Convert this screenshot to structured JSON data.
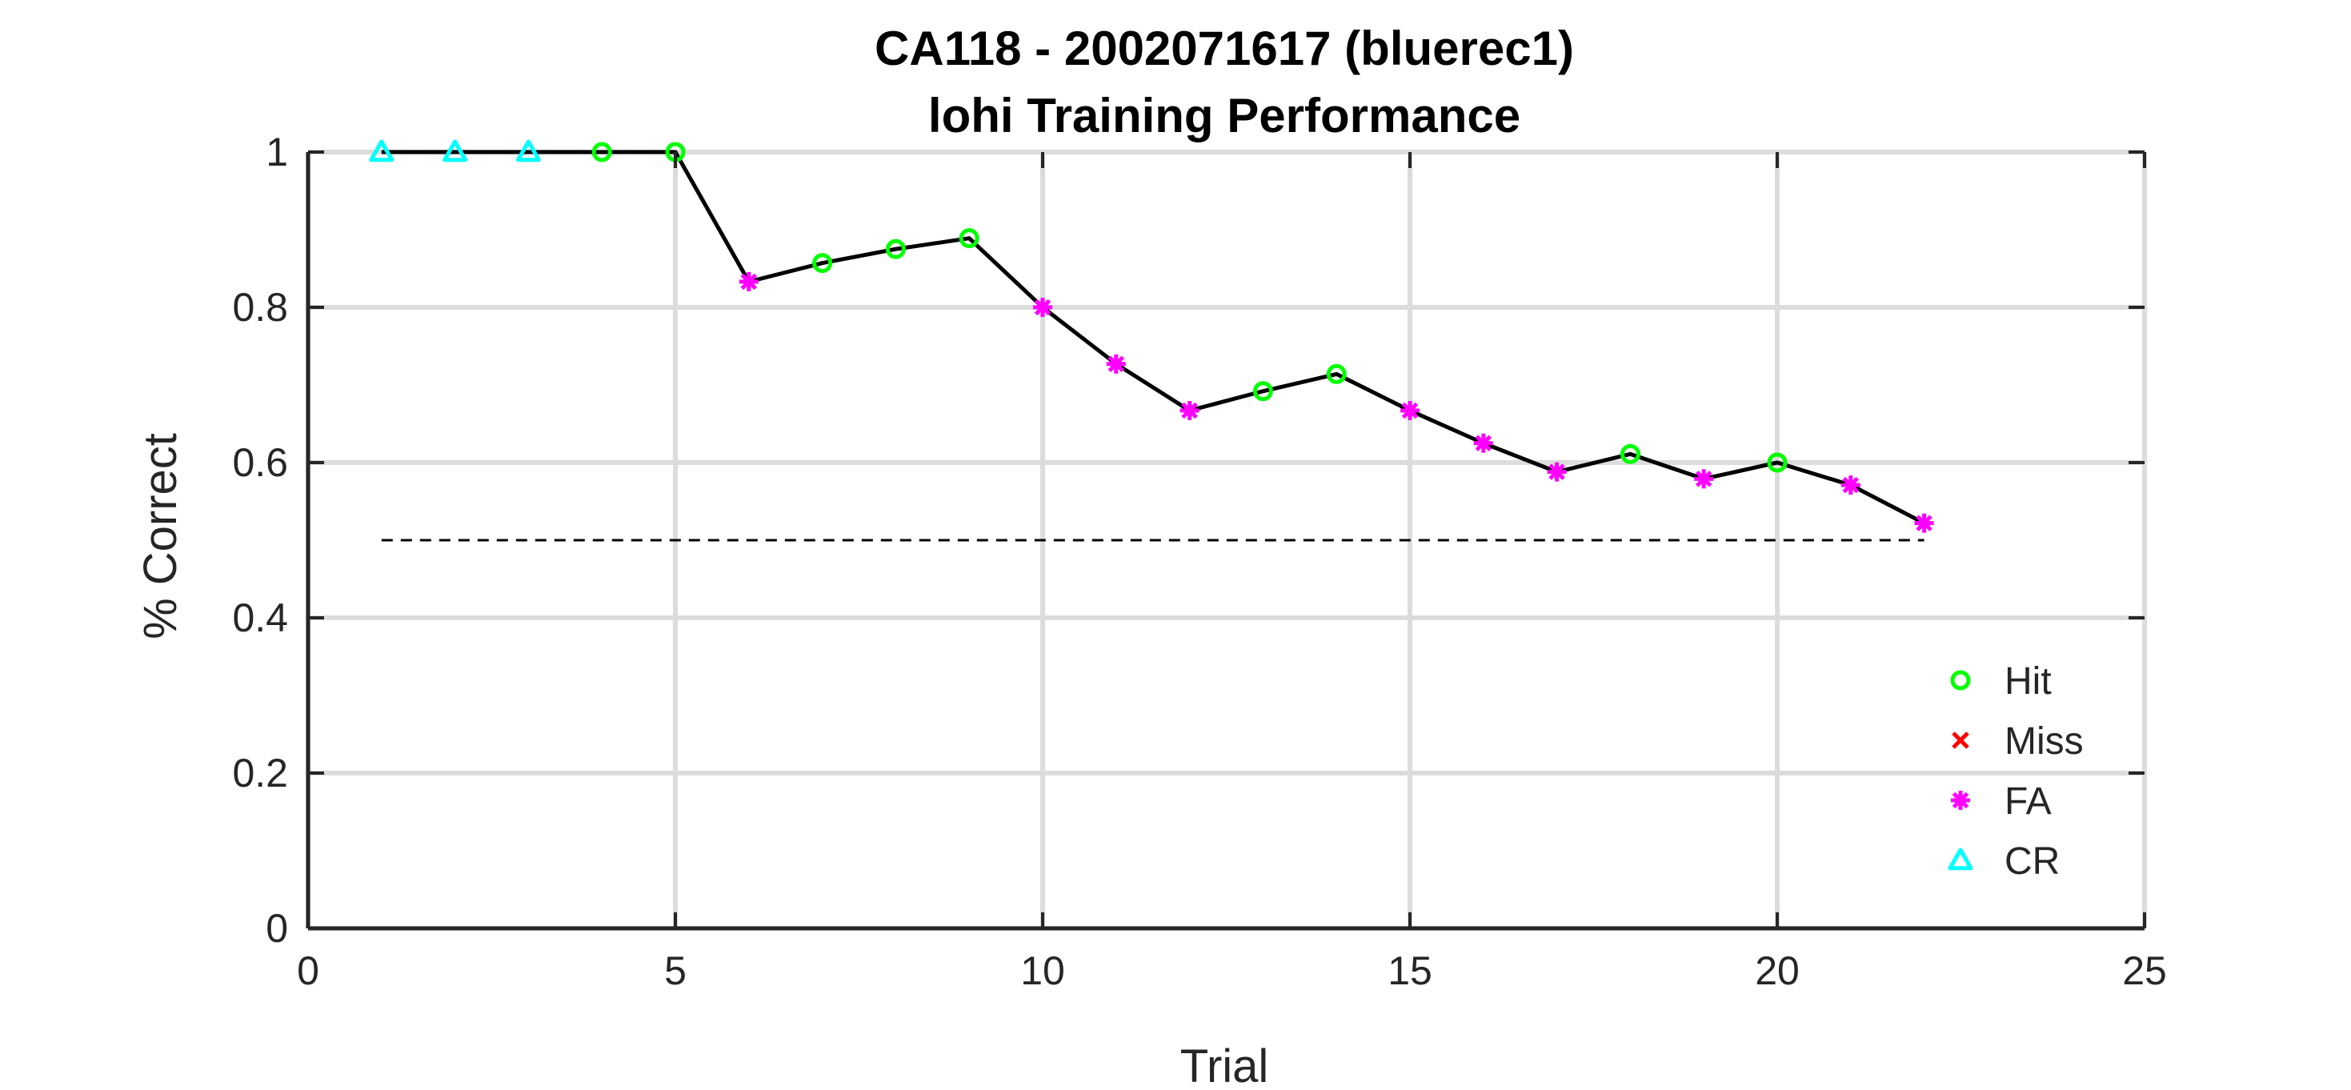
{
  "chart_data": {
    "type": "line",
    "title": "CA118 - 2002071617 (bluerec1)",
    "subtitle": "lohi Training Performance",
    "xlabel": "Trial",
    "ylabel": "% Correct",
    "xlim": [
      0,
      25
    ],
    "ylim": [
      0,
      1
    ],
    "xticks": [
      0,
      5,
      10,
      15,
      20,
      25
    ],
    "yticks": [
      0,
      0.2,
      0.4,
      0.6,
      0.8,
      1
    ],
    "xtick_labels": [
      "0",
      "5",
      "10",
      "15",
      "20",
      "25"
    ],
    "ytick_labels": [
      "0",
      "0.2",
      "0.4",
      "0.6",
      "0.8",
      "1"
    ],
    "grid": true,
    "legend_position": "bottom-right",
    "line_color": "#000000",
    "reference_line": {
      "y": 0.5,
      "x_range": [
        1,
        22
      ],
      "style": "dashed",
      "color": "#000000"
    },
    "x": [
      1,
      2,
      3,
      4,
      5,
      6,
      7,
      8,
      9,
      10,
      11,
      12,
      13,
      14,
      15,
      16,
      17,
      18,
      19,
      20,
      21,
      22
    ],
    "y": [
      1.0,
      1.0,
      1.0,
      1.0,
      1.0,
      0.833,
      0.857,
      0.875,
      0.889,
      0.8,
      0.727,
      0.667,
      0.692,
      0.714,
      0.667,
      0.625,
      0.588,
      0.611,
      0.579,
      0.6,
      0.571,
      0.522
    ],
    "outcomes": [
      "CR",
      "CR",
      "CR",
      "Hit",
      "Hit",
      "FA",
      "Hit",
      "Hit",
      "Hit",
      "FA",
      "FA",
      "FA",
      "Hit",
      "Hit",
      "FA",
      "FA",
      "FA",
      "Hit",
      "FA",
      "Hit",
      "FA",
      "FA"
    ],
    "legend": [
      {
        "key": "Hit",
        "label": "Hit",
        "marker": "circle",
        "color": "#00ff00"
      },
      {
        "key": "Miss",
        "label": "Miss",
        "marker": "cross",
        "color": "#ff0000"
      },
      {
        "key": "FA",
        "label": "FA",
        "marker": "asterisk",
        "color": "#ff00ff"
      },
      {
        "key": "CR",
        "label": "CR",
        "marker": "triangle",
        "color": "#00ffff"
      }
    ]
  }
}
